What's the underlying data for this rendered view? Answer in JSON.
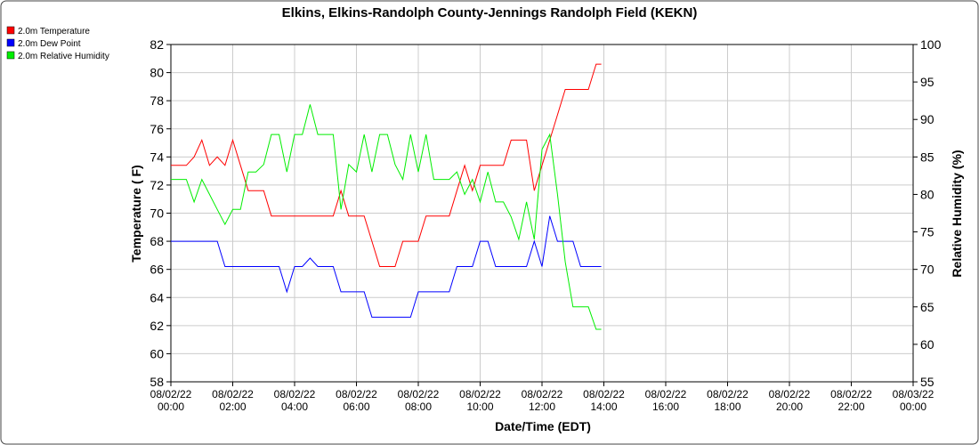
{
  "chart_data": {
    "type": "line",
    "title": "Elkins, Elkins-Randolph County-Jennings Randolph Field (KEKN)",
    "xlabel": "Date/Time (EDT)",
    "ylabel": "Temperature ( F)",
    "y2label": "Relative Humidity (%)",
    "x": [
      "08/02/22 00:00",
      "08/02/22 00:15",
      "08/02/22 00:30",
      "08/02/22 00:45",
      "08/02/22 01:00",
      "08/02/22 01:15",
      "08/02/22 01:30",
      "08/02/22 01:45",
      "08/02/22 02:00",
      "08/02/22 02:15",
      "08/02/22 02:30",
      "08/02/22 02:45",
      "08/02/22 03:00",
      "08/02/22 03:15",
      "08/02/22 03:30",
      "08/02/22 03:45",
      "08/02/22 04:00",
      "08/02/22 04:15",
      "08/02/22 04:30",
      "08/02/22 04:45",
      "08/02/22 05:00",
      "08/02/22 05:15",
      "08/02/22 05:30",
      "08/02/22 05:45",
      "08/02/22 06:00",
      "08/02/22 06:15",
      "08/02/22 06:30",
      "08/02/22 06:45",
      "08/02/22 07:00",
      "08/02/22 07:15",
      "08/02/22 07:30",
      "08/02/22 07:45",
      "08/02/22 08:00",
      "08/02/22 08:15",
      "08/02/22 08:30",
      "08/02/22 08:45",
      "08/02/22 09:00",
      "08/02/22 09:15",
      "08/02/22 09:30",
      "08/02/22 09:45",
      "08/02/22 10:00",
      "08/02/22 10:15",
      "08/02/22 10:30",
      "08/02/22 10:45",
      "08/02/22 11:00",
      "08/02/22 11:15",
      "08/02/22 11:30",
      "08/02/22 11:45",
      "08/02/22 12:00",
      "08/02/22 12:15",
      "08/02/22 12:30",
      "08/02/22 12:45",
      "08/02/22 13:00",
      "08/02/22 13:15",
      "08/02/22 13:30",
      "08/02/22 13:45",
      "08/02/22 13:55"
    ],
    "series": [
      {
        "name": "2.0m Temperature",
        "color": "#ff0000",
        "axis": "y",
        "values": [
          73.4,
          73.4,
          73.4,
          74,
          75.2,
          73.4,
          74,
          73.4,
          75.2,
          73.4,
          71.6,
          71.6,
          71.6,
          69.8,
          69.8,
          69.8,
          69.8,
          69.8,
          69.8,
          69.8,
          69.8,
          69.8,
          71.6,
          69.8,
          69.8,
          69.8,
          68,
          66.2,
          66.2,
          66.2,
          68,
          68,
          68,
          69.8,
          69.8,
          69.8,
          69.8,
          71.6,
          73.4,
          71.6,
          73.4,
          73.4,
          73.4,
          73.4,
          75.2,
          75.2,
          75.2,
          71.6,
          73.4,
          75.2,
          77,
          78.8,
          78.8,
          78.8,
          78.8,
          80.6,
          80.6
        ]
      },
      {
        "name": "2.0m Dew Point",
        "color": "#0000ff",
        "axis": "y",
        "values": [
          68,
          68,
          68,
          68,
          68,
          68,
          68,
          66.2,
          66.2,
          66.2,
          66.2,
          66.2,
          66.2,
          66.2,
          66.2,
          64.4,
          66.2,
          66.2,
          66.8,
          66.2,
          66.2,
          66.2,
          64.4,
          64.4,
          64.4,
          64.4,
          62.6,
          62.6,
          62.6,
          62.6,
          62.6,
          62.6,
          64.4,
          64.4,
          64.4,
          64.4,
          64.4,
          66.2,
          66.2,
          66.2,
          68,
          68,
          66.2,
          66.2,
          66.2,
          66.2,
          66.2,
          68,
          66.2,
          69.8,
          68,
          68,
          68,
          66.2,
          66.2,
          66.2,
          66.2
        ]
      },
      {
        "name": "2.0m Relative Humidity",
        "color": "#00ee00",
        "axis": "y2",
        "values": [
          82,
          82,
          82,
          79,
          82,
          80,
          78,
          76,
          78,
          78,
          83,
          83,
          84,
          88,
          88,
          83,
          88,
          88,
          92,
          88,
          88,
          88,
          78,
          84,
          83,
          88,
          83,
          88,
          88,
          84,
          82,
          88,
          83,
          88,
          82,
          82,
          82,
          83,
          80,
          82,
          79,
          83,
          79,
          79,
          77,
          74,
          79,
          74,
          86,
          88,
          80,
          71,
          65,
          65,
          65,
          62,
          62
        ]
      }
    ],
    "xlim": [
      "08/02/22 00:00",
      "08/03/22 00:00"
    ],
    "xticks": [
      "08/02/22 00:00",
      "08/02/22 02:00",
      "08/02/22 04:00",
      "08/02/22 06:00",
      "08/02/22 08:00",
      "08/02/22 10:00",
      "08/02/22 12:00",
      "08/02/22 14:00",
      "08/02/22 16:00",
      "08/02/22 18:00",
      "08/02/22 20:00",
      "08/02/22 22:00",
      "08/03/22 00:00"
    ],
    "ylim": [
      58,
      82
    ],
    "yticks": [
      58,
      60,
      62,
      64,
      66,
      68,
      70,
      72,
      74,
      76,
      78,
      80,
      82
    ],
    "y2lim": [
      55,
      100
    ],
    "y2ticks": [
      55,
      60,
      65,
      70,
      75,
      80,
      85,
      90,
      95,
      100
    ],
    "grid": true,
    "legend": "top-left"
  }
}
